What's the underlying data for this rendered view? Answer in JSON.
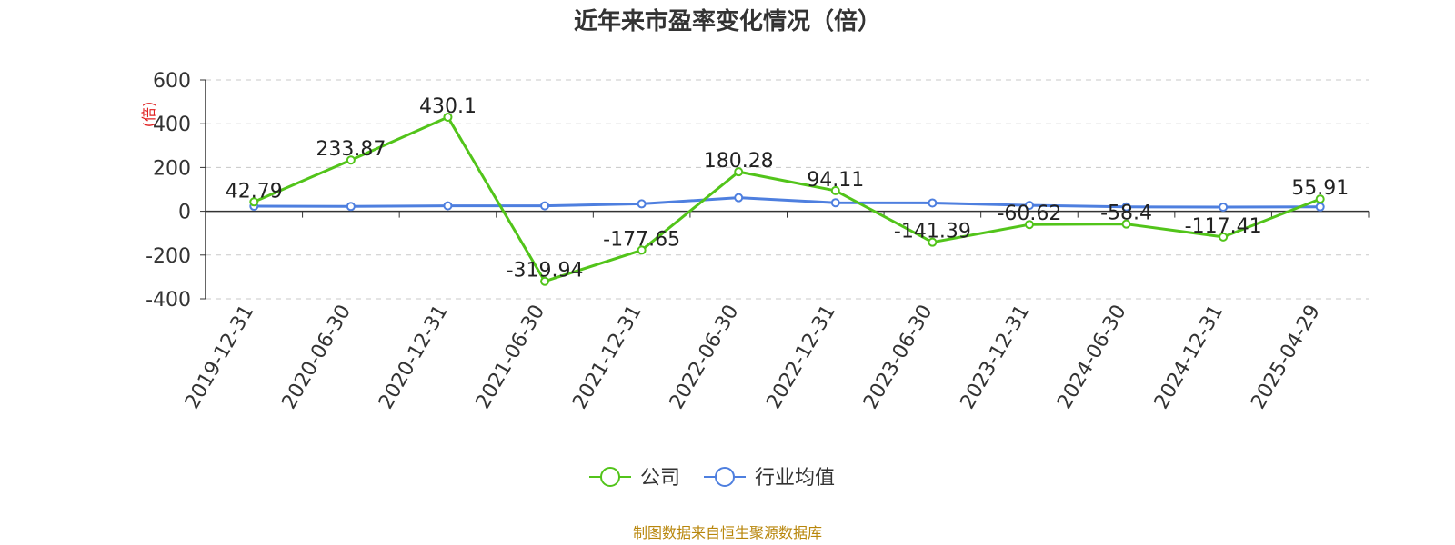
{
  "chart_data": {
    "type": "line",
    "title": "近年来市盈率变化情况（倍）",
    "ylabel": "(倍)",
    "xlabel": "",
    "ylim": [
      -400,
      600
    ],
    "yticks": [
      600,
      400,
      200,
      0,
      -200,
      -400
    ],
    "grid": true,
    "legend_position": "bottom-center",
    "categories": [
      "2019-12-31",
      "2020-06-30",
      "2020-12-31",
      "2021-06-30",
      "2021-12-31",
      "2022-06-30",
      "2022-12-31",
      "2023-06-30",
      "2023-12-31",
      "2024-06-30",
      "2024-12-31",
      "2025-04-29"
    ],
    "series": [
      {
        "name": "公司",
        "color": "#52c41a",
        "values": [
          42.79,
          233.87,
          430.1,
          -319.94,
          -177.65,
          180.28,
          94.11,
          -141.39,
          -60.62,
          -58.4,
          -117.41,
          55.91
        ],
        "labels": [
          "42.79",
          "233.87",
          "430.1",
          "-319.94",
          "-177.65",
          "180.28",
          "94.11",
          "-141.39",
          "-60.62",
          "-58.4",
          "-117.41",
          "55.91"
        ]
      },
      {
        "name": "行业均值",
        "color": "#4e7fdf",
        "values": [
          23,
          22,
          25,
          25,
          34,
          62,
          39,
          38,
          27,
          20,
          19,
          20
        ]
      }
    ]
  },
  "footer": {
    "source": "制图数据来自恒生聚源数据库",
    "source_color": "#b8860b"
  }
}
